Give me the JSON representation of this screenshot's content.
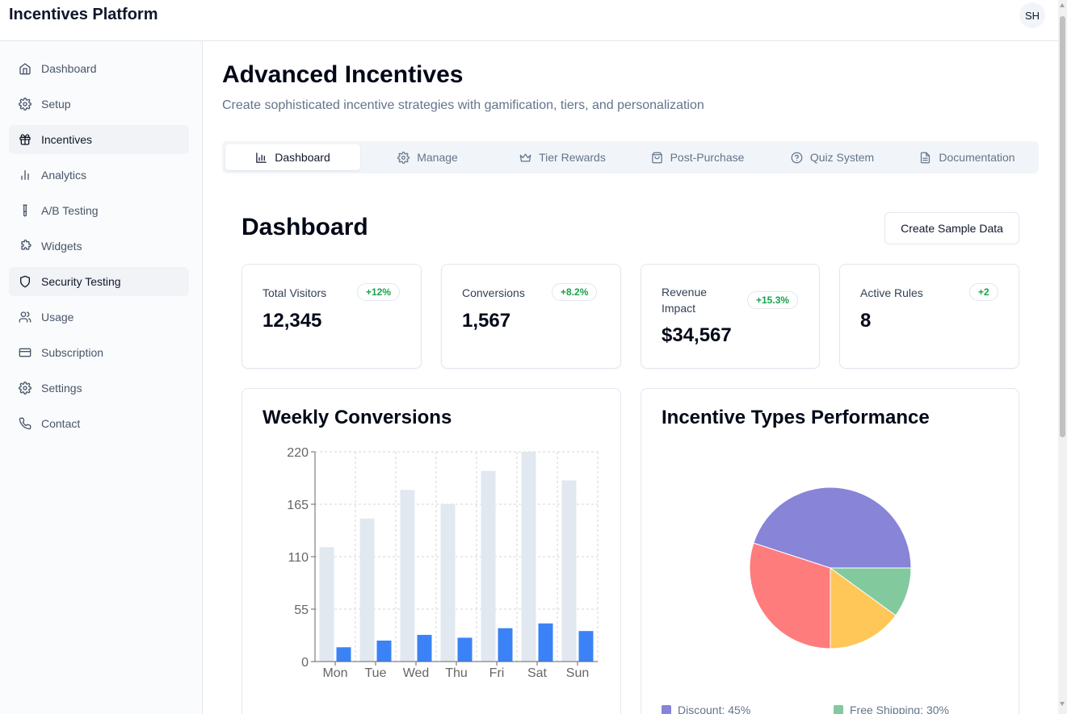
{
  "app": {
    "title": "Incentives Platform",
    "avatar_initials": "SH"
  },
  "sidebar": {
    "items": [
      {
        "label": "Dashboard",
        "icon": "home-icon",
        "active": false
      },
      {
        "label": "Setup",
        "icon": "gear-icon",
        "active": false
      },
      {
        "label": "Incentives",
        "icon": "gift-icon",
        "active": true
      },
      {
        "label": "Analytics",
        "icon": "bar-chart-icon",
        "active": false
      },
      {
        "label": "A/B Testing",
        "icon": "test-tube-icon",
        "active": false
      },
      {
        "label": "Widgets",
        "icon": "puzzle-icon",
        "active": false
      },
      {
        "label": "Security Testing",
        "icon": "shield-icon",
        "active": true
      },
      {
        "label": "Usage",
        "icon": "users-icon",
        "active": false
      },
      {
        "label": "Subscription",
        "icon": "credit-card-icon",
        "active": false
      },
      {
        "label": "Settings",
        "icon": "gear-icon",
        "active": false
      },
      {
        "label": "Contact",
        "icon": "phone-icon",
        "active": false
      }
    ]
  },
  "page": {
    "title": "Advanced Incentives",
    "subtitle": "Create sophisticated incentive strategies with gamification, tiers, and personalization"
  },
  "tabs": [
    {
      "label": "Dashboard",
      "icon": "bar-chart-icon",
      "active": true
    },
    {
      "label": "Manage",
      "icon": "gear-icon",
      "active": false
    },
    {
      "label": "Tier Rewards",
      "icon": "crown-icon",
      "active": false
    },
    {
      "label": "Post-Purchase",
      "icon": "shopping-bag-icon",
      "active": false
    },
    {
      "label": "Quiz System",
      "icon": "help-circle-icon",
      "active": false
    },
    {
      "label": "Documentation",
      "icon": "file-text-icon",
      "active": false
    }
  ],
  "dashboard": {
    "title": "Dashboard",
    "create_sample_label": "Create Sample Data",
    "stats": [
      {
        "label": "Total Visitors",
        "value": "12,345",
        "change": "+12%"
      },
      {
        "label": "Conversions",
        "value": "1,567",
        "change": "+8.2%"
      },
      {
        "label": "Revenue Impact",
        "value": "$34,567",
        "change": "+15.3%"
      },
      {
        "label": "Active Rules",
        "value": "8",
        "change": "+2"
      }
    ],
    "weekly_title": "Weekly Conversions",
    "pie_title": "Incentive Types Performance"
  },
  "colors": {
    "bar_visitors": "#e2e8f0",
    "bar_conversions": "#3b82f6",
    "badge_green": "#16a34a",
    "pie": [
      "#8884d8",
      "#ff7c7c",
      "#ffc658",
      "#82ca9d"
    ]
  },
  "chart_data": [
    {
      "type": "bar",
      "title": "Weekly Conversions",
      "categories": [
        "Mon",
        "Tue",
        "Wed",
        "Thu",
        "Fri",
        "Sat",
        "Sun"
      ],
      "series": [
        {
          "values": [
            120,
            150,
            180,
            165,
            200,
            220,
            190
          ]
        },
        {
          "values": [
            15,
            22,
            28,
            25,
            35,
            40,
            32
          ]
        }
      ],
      "yticks": [
        0,
        55,
        110,
        165,
        220
      ],
      "ylim": [
        0,
        220
      ],
      "grid": true
    },
    {
      "type": "pie",
      "title": "Incentive Types Performance",
      "slices": [
        {
          "label": "Discount",
          "value": 45
        },
        {
          "label": "Free Shipping",
          "value": 30
        },
        {
          "label": "",
          "value": 15
        },
        {
          "label": "",
          "value": 10
        }
      ],
      "legend": [
        {
          "text": "Discount: 45%"
        },
        {
          "text": "Free Shipping: 30%"
        }
      ]
    }
  ]
}
